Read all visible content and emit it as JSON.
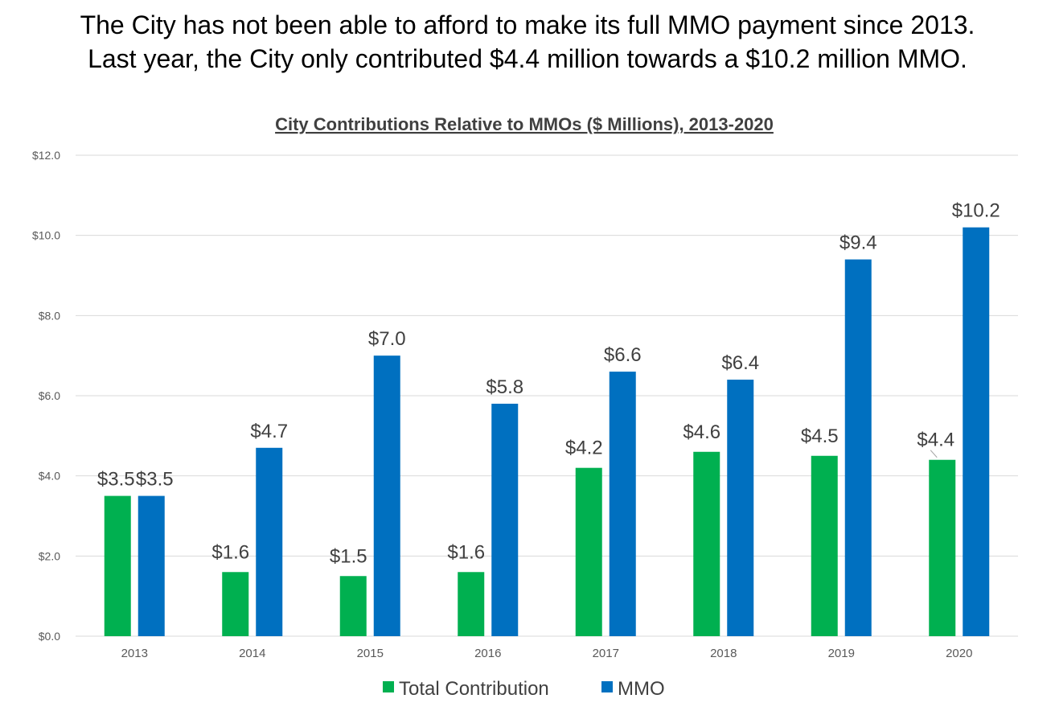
{
  "headline": {
    "line1": "The City has not been able to afford to make its full MMO payment since 2013.",
    "line2": "Last year, the City only contributed $4.4 million towards a $10.2 million MMO."
  },
  "chart_data": {
    "type": "bar",
    "title": "City Contributions Relative to MMOs ($ Millions), 2013-2020",
    "xlabel": "",
    "ylabel": "",
    "ylim": [
      0,
      12
    ],
    "yticks": [
      0,
      2,
      4,
      6,
      8,
      10,
      12
    ],
    "ytick_labels": [
      "$0.0",
      "$2.0",
      "$4.0",
      "$6.0",
      "$8.0",
      "$10.0",
      "$12.0"
    ],
    "categories": [
      "2013",
      "2014",
      "2015",
      "2016",
      "2017",
      "2018",
      "2019",
      "2020"
    ],
    "series": [
      {
        "name": "Total Contribution",
        "color": "#00b050",
        "values": [
          3.5,
          1.6,
          1.5,
          1.6,
          4.2,
          4.6,
          4.5,
          4.4
        ],
        "labels": [
          "$3.5",
          "$1.6",
          "$1.5",
          "$1.6",
          "$4.2",
          "$4.6",
          "$4.5",
          "$4.4"
        ]
      },
      {
        "name": "MMO",
        "color": "#0070c0",
        "values": [
          3.5,
          4.7,
          7.0,
          5.8,
          6.6,
          6.4,
          9.4,
          10.2
        ],
        "labels": [
          "$3.5",
          "$4.7",
          "$7.0",
          "$5.8",
          "$6.6",
          "$6.4",
          "$9.4",
          "$10.2"
        ]
      }
    ],
    "grid": true,
    "legend": "bottom-center"
  }
}
